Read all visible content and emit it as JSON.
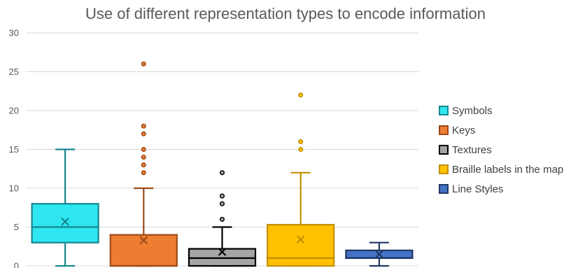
{
  "chart_data": {
    "type": "box",
    "title": "Use of different representation types to encode information",
    "xlabel": "",
    "ylabel": "",
    "ylim": [
      0,
      30
    ],
    "yticks": [
      0,
      5,
      10,
      15,
      20,
      25,
      30
    ],
    "grid": true,
    "legend_position": "right",
    "series": [
      {
        "name": "Symbols",
        "color": "#2EE6F0",
        "stroke": "#17878F",
        "min": 0,
        "q1": 3,
        "median": 5,
        "q3": 8,
        "max": 15,
        "mean": 5.7,
        "outliers": []
      },
      {
        "name": "Keys",
        "color": "#ED7D31",
        "stroke": "#9C4A16",
        "min": 0,
        "q1": 0,
        "median": 0,
        "q3": 4,
        "max": 10,
        "mean": 3.3,
        "outliers": [
          12,
          13,
          14,
          15,
          17,
          18,
          26
        ]
      },
      {
        "name": "Textures",
        "color": "#A5A5A5",
        "stroke": "#000000",
        "min": 0,
        "q1": 0,
        "median": 1,
        "q3": 2.2,
        "max": 5,
        "mean": 1.8,
        "outliers": [
          6,
          8,
          9,
          12
        ]
      },
      {
        "name": "Braille labels in the map",
        "color": "#FFC000",
        "stroke": "#C09000",
        "min": 0,
        "q1": 0,
        "median": 1,
        "q3": 5.3,
        "max": 12,
        "mean": 3.4,
        "outliers": [
          15,
          16,
          22
        ]
      },
      {
        "name": "Line Styles",
        "color": "#4472C4",
        "stroke": "#1F3864",
        "min": 0,
        "q1": 1,
        "median": 1,
        "q3": 2,
        "max": 3,
        "mean": 1.5,
        "outliers": []
      }
    ]
  }
}
